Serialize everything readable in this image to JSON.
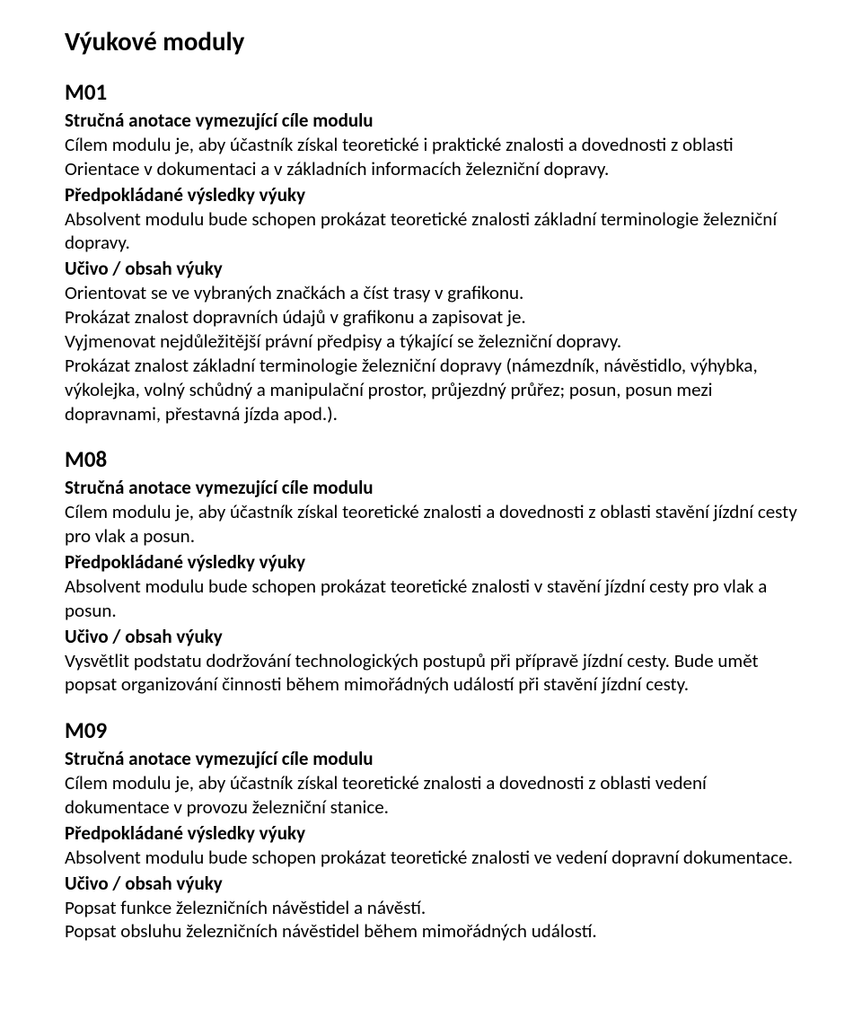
{
  "doc": {
    "title": "Výukové moduly"
  },
  "labels": {
    "anotace": "Stručná anotace vymezující cíle modulu",
    "vysledky": "Předpokládané výsledky výuky",
    "ucivo": "Učivo / obsah výuky"
  },
  "modules": {
    "m01": {
      "code": "M01",
      "anotace_body": "Cílem modulu je, aby účastník získal teoretické i praktické znalosti a dovednosti z oblasti Orientace v dokumentaci a v základních informacích železniční dopravy.",
      "vysledky_body": "Absolvent modulu bude schopen prokázat teoretické znalosti základní terminologie železniční dopravy.",
      "ucivo_p1": "Orientovat se ve vybraných značkách a číst trasy v grafikonu.",
      "ucivo_p2": "Prokázat znalost dopravních údajů v grafikonu a zapisovat je.",
      "ucivo_p3": "Vyjmenovat nejdůležitější právní předpisy a týkající se železniční dopravy.",
      "ucivo_p4": "Prokázat znalost základní terminologie železniční dopravy (námezdník, návěstidlo, výhybka, výkolejka, volný schůdný a manipulační prostor, průjezdný průřez; posun, posun mezi dopravnami, přestavná jízda apod.)."
    },
    "m08": {
      "code": "M08",
      "anotace_body": "Cílem modulu je, aby účastník získal teoretické znalosti a dovednosti z oblasti stavění jízdní cesty pro vlak a posun.",
      "vysledky_body": "Absolvent modulu bude schopen prokázat teoretické znalosti v stavění jízdní cesty pro vlak a posun.",
      "ucivo_p1": "Vysvětlit podstatu dodržování technologických postupů při přípravě jízdní cesty. Bude umět popsat organizování činnosti během mimořádných událostí při stavění jízdní cesty."
    },
    "m09": {
      "code": "M09",
      "anotace_body": "Cílem modulu je, aby účastník získal teoretické znalosti a dovednosti z oblasti vedení dokumentace v provozu železniční stanice.",
      "vysledky_body": "Absolvent modulu bude schopen prokázat teoretické znalosti ve vedení dopravní dokumentace.",
      "ucivo_p1": "Popsat funkce železničních návěstidel a návěstí.",
      "ucivo_p2": "Popsat obsluhu železničních návěstidel během mimořádných událostí."
    }
  }
}
